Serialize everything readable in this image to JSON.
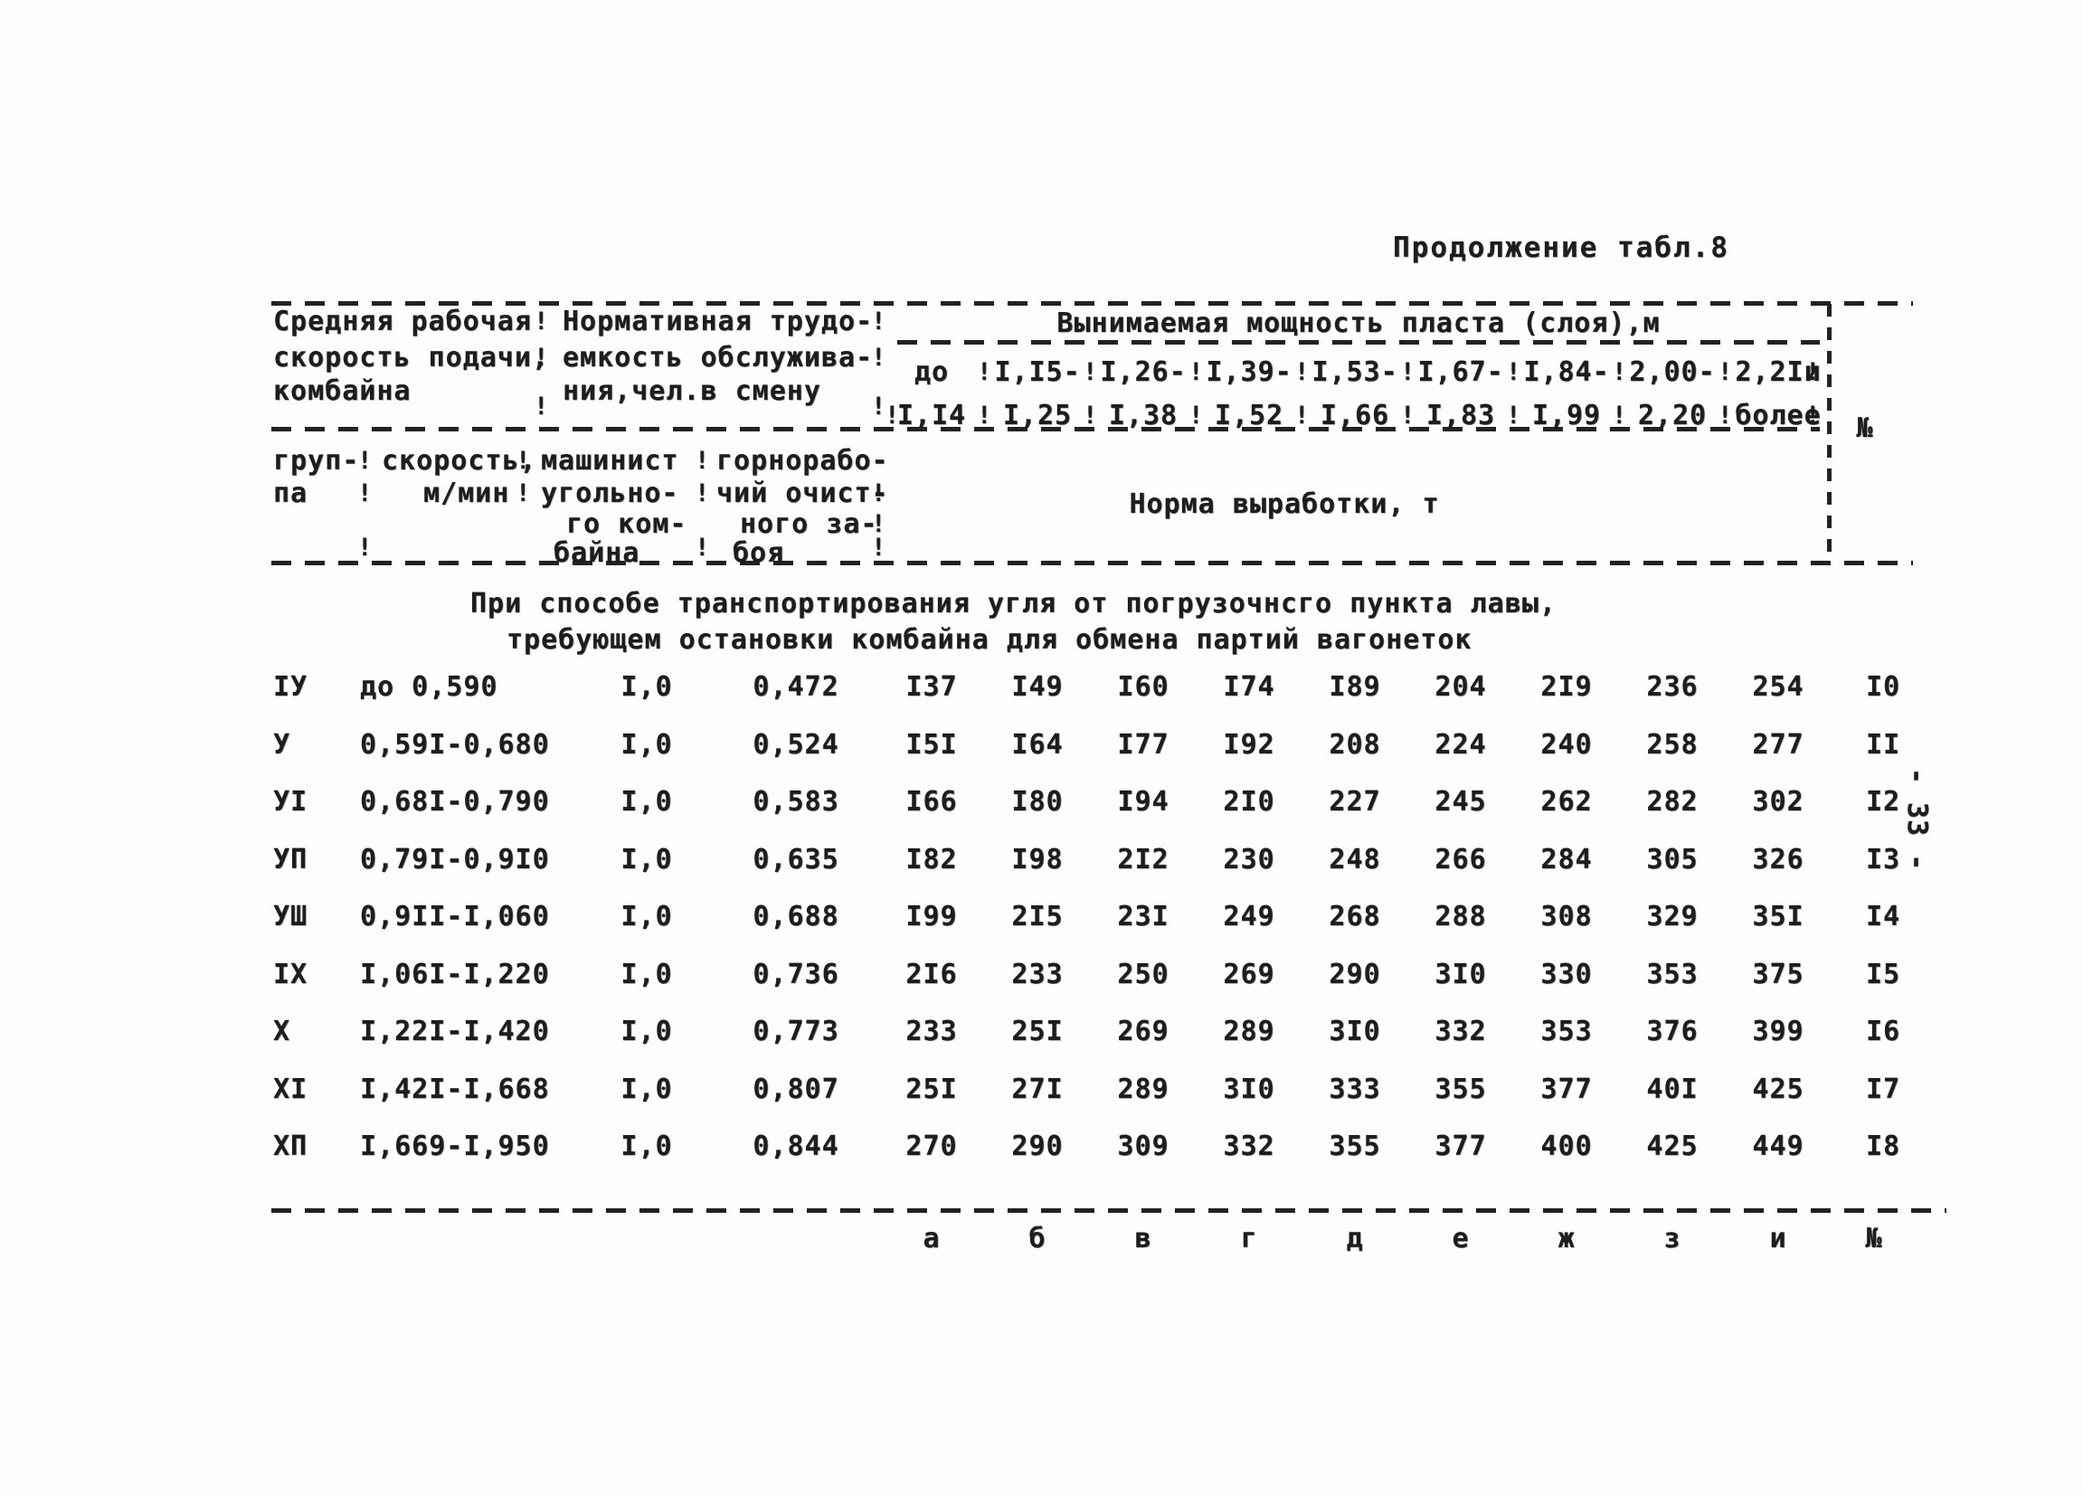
{
  "colors": {
    "paper": "#fdfdfd",
    "ink": "#1d1d1d"
  },
  "page": {
    "title": "Продолжение табл.8",
    "page_number_vertical": "- 33 -"
  },
  "table": {
    "header": {
      "separator_glyph": "!",
      "col_speed_lines": [
        "Средняя рабочая",
        "скорость подачи,",
        "комбайна"
      ],
      "col_labor_lines": [
        "Нормативная трудо-",
        "емкость обслужива-",
        "ния,чел.в смену"
      ],
      "extraction_title": "Вынимаемая мощность пласта (слоя),м",
      "ranges_top": [
        "до",
        "I,I5-",
        "I,26-",
        "I,39-",
        "I,53-",
        "I,67-",
        "I,84-",
        "2,00-",
        "2,2Iи"
      ],
      "ranges_bottom": [
        "I,I4",
        "I,25",
        "I,38",
        "I,52",
        "I,66",
        "I,83",
        "I,99",
        "2,20",
        "более"
      ],
      "number_col": "№",
      "sub_group_lines": [
        "груп-",
        "па"
      ],
      "sub_speed_lines": [
        "скорость,",
        "м/мин"
      ],
      "sub_machinist_lines": [
        "машинист",
        "угольно-",
        "го ком-",
        "байна"
      ],
      "sub_miner_lines": [
        "горнорабо-",
        "чий очист-",
        "ного за-",
        "боя"
      ],
      "norm_title": "Норма выработки, т"
    },
    "section_note_lines": [
      "При способе транспортирования угля от погрузочнсго пункта лавы,",
      "требующем остановки комбайна для обмена партий вагонеток"
    ],
    "rows": [
      {
        "group": "IУ",
        "speed": "до 0,590",
        "machinist": "I,0",
        "labor": "0,472",
        "norms": [
          "I37",
          "I49",
          "I60",
          "I74",
          "I89",
          "204",
          "2I9",
          "236",
          "254"
        ],
        "num": "I0"
      },
      {
        "group": "У",
        "speed": "0,59I-0,680",
        "machinist": "I,0",
        "labor": "0,524",
        "norms": [
          "I5I",
          "I64",
          "I77",
          "I92",
          "208",
          "224",
          "240",
          "258",
          "277"
        ],
        "num": "II"
      },
      {
        "group": "УI",
        "speed": "0,68I-0,790",
        "machinist": "I,0",
        "labor": "0,583",
        "norms": [
          "I66",
          "I80",
          "I94",
          "2I0",
          "227",
          "245",
          "262",
          "282",
          "302"
        ],
        "num": "I2"
      },
      {
        "group": "УП",
        "speed": "0,79I-0,9I0",
        "machinist": "I,0",
        "labor": "0,635",
        "norms": [
          "I82",
          "I98",
          "2I2",
          "230",
          "248",
          "266",
          "284",
          "305",
          "326"
        ],
        "num": "I3"
      },
      {
        "group": "УШ",
        "speed": "0,9II-I,060",
        "machinist": "I,0",
        "labor": "0,688",
        "norms": [
          "I99",
          "2I5",
          "23I",
          "249",
          "268",
          "288",
          "308",
          "329",
          "35I"
        ],
        "num": "I4"
      },
      {
        "group": "IX",
        "speed": "I,06I-I,220",
        "machinist": "I,0",
        "labor": "0,736",
        "norms": [
          "2I6",
          "233",
          "250",
          "269",
          "290",
          "3I0",
          "330",
          "353",
          "375"
        ],
        "num": "I5"
      },
      {
        "group": "X",
        "speed": "I,22I-I,420",
        "machinist": "I,0",
        "labor": "0,773",
        "norms": [
          "233",
          "25I",
          "269",
          "289",
          "3I0",
          "332",
          "353",
          "376",
          "399"
        ],
        "num": "I6"
      },
      {
        "group": "XI",
        "speed": "I,42I-I,668",
        "machinist": "I,0",
        "labor": "0,807",
        "norms": [
          "25I",
          "27I",
          "289",
          "3I0",
          "333",
          "355",
          "377",
          "40I",
          "425"
        ],
        "num": "I7"
      },
      {
        "group": "XП",
        "speed": "I,669-I,950",
        "machinist": "I,0",
        "labor": "0,844",
        "norms": [
          "270",
          "290",
          "309",
          "332",
          "355",
          "377",
          "400",
          "425",
          "449"
        ],
        "num": "I8"
      }
    ],
    "footer_letters": [
      "а",
      "б",
      "в",
      "г",
      "д",
      "е",
      "ж",
      "з",
      "и"
    ],
    "footer_number": "№"
  }
}
